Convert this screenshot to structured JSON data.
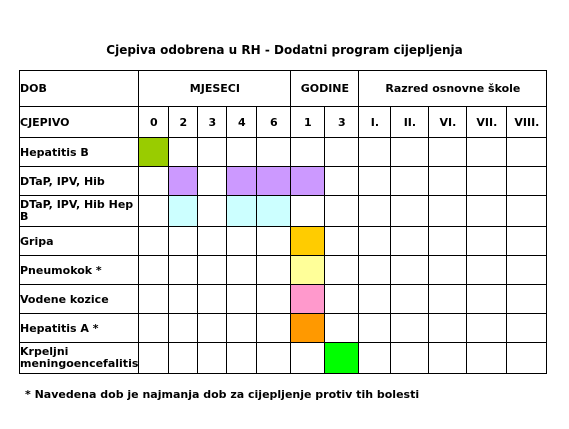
{
  "title": "Cjepiva odobrena u RH - Dodatni program cijepljenja",
  "header": {
    "dob": "DOB",
    "mjeseci": "MJESECI",
    "godine": "GODINE",
    "razred": "Razred osnovne škole"
  },
  "columns": {
    "label": "CJEPIVO",
    "ages": [
      "0",
      "2",
      "3",
      "4",
      "6",
      "1",
      "3",
      "I.",
      "II.",
      "VI.",
      "VII.",
      "VIII."
    ]
  },
  "colors": {
    "green_dark": "#99cc00",
    "purple": "#cc99ff",
    "cyan": "#ccffff",
    "orange_gold": "#ffcc00",
    "yellow_light": "#ffff99",
    "pink": "#ff99cc",
    "orange": "#ff9900",
    "green_bright": "#00ff00"
  },
  "rows": [
    {
      "name": "Hepatitis B",
      "cells": [
        "green_dark",
        "",
        "",
        "",
        "",
        "",
        "",
        "",
        "",
        "",
        "",
        ""
      ]
    },
    {
      "name": "DTaP, IPV, Hib",
      "cells": [
        "",
        "purple",
        "",
        "purple",
        "purple",
        "purple",
        "",
        "",
        "",
        "",
        "",
        ""
      ]
    },
    {
      "name": "DTaP, IPV, Hib Hep B",
      "cells": [
        "",
        "cyan",
        "",
        "cyan",
        "cyan",
        "",
        "",
        "",
        "",
        "",
        "",
        ""
      ]
    },
    {
      "name": "Gripa",
      "cells": [
        "",
        "",
        "",
        "",
        "",
        "orange_gold",
        "",
        "",
        "",
        "",
        "",
        ""
      ]
    },
    {
      "name": "Pneumokok *",
      "cells": [
        "",
        "",
        "",
        "",
        "",
        "yellow_light",
        "",
        "",
        "",
        "",
        "",
        ""
      ]
    },
    {
      "name": "Vodene kozice",
      "cells": [
        "",
        "",
        "",
        "",
        "",
        "pink",
        "",
        "",
        "",
        "",
        "",
        ""
      ]
    },
    {
      "name": "Hepatitis A *",
      "cells": [
        "",
        "",
        "",
        "",
        "",
        "orange",
        "",
        "",
        "",
        "",
        "",
        ""
      ]
    },
    {
      "name": "Krpeljni meningoencefalitis",
      "cells": [
        "",
        "",
        "",
        "",
        "",
        "",
        "green_bright",
        "",
        "",
        "",
        "",
        ""
      ]
    }
  ],
  "footnote": "* Navedena dob je najmanja dob za cijepljenje protiv tih bolesti"
}
